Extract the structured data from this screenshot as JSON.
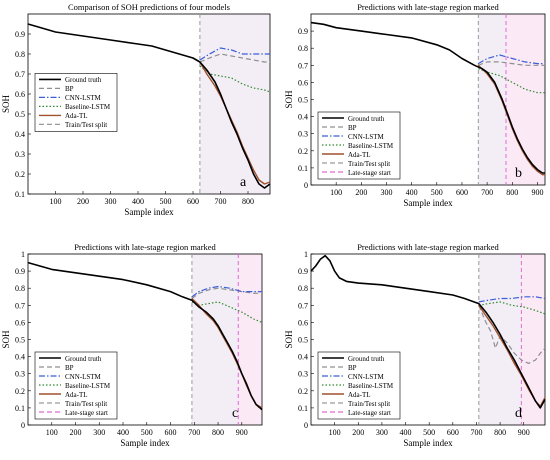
{
  "figure": {
    "colors": {
      "Ground truth": "#000000",
      "BP": "#8f8f8f",
      "CNN-LSTM": "#3b5fd6",
      "Baseline-LSTM": "#2e8b2e",
      "Ada-TL": "#a0522d",
      "Train/Test split": "#9a9a9a",
      "Late-stage start": "#e06ad2"
    }
  },
  "chart_data": [
    {
      "type": "line",
      "title": "Comparison of SOH predictions of four models",
      "xlabel": "Sample index",
      "ylabel": "SOH",
      "panel_label": "a",
      "xlim": [
        0,
        880
      ],
      "ylim": [
        0.1,
        1.0
      ],
      "xticks": [
        100,
        200,
        300,
        400,
        500,
        600,
        700,
        800
      ],
      "yticks": [
        0.1,
        0.2,
        0.3,
        0.4,
        0.5,
        0.6,
        0.7,
        0.8,
        0.9
      ],
      "legend": [
        "Ground truth",
        "BP",
        "CNN-LSTM",
        "Baseline-LSTM",
        "Ada-TL",
        "Train/Test split"
      ],
      "legend_position": "center-left",
      "split_x": 625,
      "series": [
        {
          "name": "Ground truth",
          "style": "solid",
          "x": [
            0,
            50,
            100,
            200,
            300,
            400,
            450,
            500,
            550,
            600,
            625,
            650,
            680,
            700,
            720,
            740,
            760,
            780,
            800,
            820,
            840,
            860,
            880
          ],
          "y": [
            0.95,
            0.93,
            0.91,
            0.89,
            0.87,
            0.85,
            0.84,
            0.82,
            0.8,
            0.78,
            0.76,
            0.72,
            0.66,
            0.6,
            0.53,
            0.46,
            0.4,
            0.33,
            0.27,
            0.2,
            0.15,
            0.13,
            0.15
          ]
        },
        {
          "name": "BP",
          "style": "dashed",
          "x": [
            625,
            660,
            700,
            740,
            780,
            820,
            860,
            880
          ],
          "y": [
            0.76,
            0.78,
            0.8,
            0.79,
            0.78,
            0.77,
            0.76,
            0.76
          ]
        },
        {
          "name": "CNN-LSTM",
          "style": "dashdot",
          "x": [
            625,
            660,
            700,
            740,
            780,
            820,
            860,
            880
          ],
          "y": [
            0.77,
            0.8,
            0.83,
            0.82,
            0.8,
            0.8,
            0.8,
            0.8
          ]
        },
        {
          "name": "Baseline-LSTM",
          "style": "dotted",
          "x": [
            625,
            660,
            700,
            740,
            780,
            820,
            860,
            880
          ],
          "y": [
            0.74,
            0.7,
            0.69,
            0.68,
            0.65,
            0.63,
            0.62,
            0.61
          ]
        },
        {
          "name": "Ada-TL",
          "style": "solid",
          "x": [
            625,
            650,
            680,
            700,
            720,
            740,
            760,
            780,
            800,
            820,
            840,
            860,
            880
          ],
          "y": [
            0.76,
            0.7,
            0.64,
            0.59,
            0.53,
            0.47,
            0.41,
            0.34,
            0.28,
            0.22,
            0.17,
            0.15,
            0.16
          ]
        }
      ]
    },
    {
      "type": "line",
      "title": "Predictions with late-stage region marked",
      "xlabel": "Sample index",
      "ylabel": "SOH",
      "panel_label": "b",
      "xlim": [
        0,
        930
      ],
      "ylim": [
        0,
        1.0
      ],
      "xticks": [
        100,
        200,
        300,
        400,
        500,
        600,
        700,
        800,
        900
      ],
      "yticks": [
        0,
        0.1,
        0.2,
        0.3,
        0.4,
        0.5,
        0.6,
        0.7,
        0.8,
        0.9
      ],
      "legend": [
        "Ground truth",
        "BP",
        "CNN-LSTM",
        "Baseline-LSTM",
        "Ada-TL",
        "Train/Test split",
        "Late-stage start"
      ],
      "legend_position": "lower-left",
      "split_x": 665,
      "late_x": 775,
      "series": [
        {
          "name": "Ground truth",
          "style": "solid",
          "x": [
            0,
            50,
            100,
            200,
            300,
            400,
            500,
            550,
            600,
            650,
            680,
            700,
            730,
            760,
            780,
            800,
            820,
            840,
            860,
            880,
            900,
            920,
            930
          ],
          "y": [
            0.95,
            0.94,
            0.92,
            0.9,
            0.88,
            0.86,
            0.82,
            0.79,
            0.74,
            0.7,
            0.68,
            0.66,
            0.6,
            0.5,
            0.42,
            0.34,
            0.27,
            0.21,
            0.16,
            0.12,
            0.09,
            0.07,
            0.07
          ]
        },
        {
          "name": "BP",
          "style": "dashed",
          "x": [
            665,
            700,
            750,
            800,
            850,
            900,
            930
          ],
          "y": [
            0.7,
            0.72,
            0.72,
            0.71,
            0.7,
            0.7,
            0.7
          ]
        },
        {
          "name": "CNN-LSTM",
          "style": "dashdot",
          "x": [
            665,
            700,
            750,
            800,
            850,
            900,
            930
          ],
          "y": [
            0.71,
            0.74,
            0.76,
            0.74,
            0.72,
            0.71,
            0.71
          ]
        },
        {
          "name": "Baseline-LSTM",
          "style": "dotted",
          "x": [
            665,
            700,
            750,
            800,
            850,
            900,
            930
          ],
          "y": [
            0.68,
            0.66,
            0.64,
            0.6,
            0.56,
            0.54,
            0.54
          ]
        },
        {
          "name": "Ada-TL",
          "style": "solid",
          "x": [
            665,
            700,
            730,
            760,
            780,
            800,
            820,
            840,
            860,
            880,
            900,
            920,
            930
          ],
          "y": [
            0.7,
            0.65,
            0.59,
            0.49,
            0.41,
            0.33,
            0.26,
            0.2,
            0.15,
            0.11,
            0.08,
            0.06,
            0.06
          ]
        }
      ]
    },
    {
      "type": "line",
      "title": "Predictions with late-stage region marked",
      "xlabel": "Sample index",
      "ylabel": "SOH",
      "panel_label": "c",
      "xlim": [
        0,
        985
      ],
      "ylim": [
        0,
        1.0
      ],
      "xticks": [
        100,
        200,
        300,
        400,
        500,
        600,
        700,
        800,
        900
      ],
      "yticks": [
        0,
        0.1,
        0.2,
        0.3,
        0.4,
        0.5,
        0.6,
        0.7,
        0.8,
        0.9,
        1
      ],
      "legend": [
        "Ground truth",
        "BP",
        "CNN-LSTM",
        "Baseline-LSTM",
        "Ada-TL",
        "Train/Test split",
        "Late-stage start"
      ],
      "legend_position": "lower-left",
      "split_x": 690,
      "late_x": 885,
      "series": [
        {
          "name": "Ground truth",
          "style": "solid",
          "x": [
            0,
            50,
            100,
            200,
            300,
            400,
            500,
            600,
            650,
            690,
            720,
            750,
            780,
            800,
            820,
            840,
            860,
            880,
            900,
            920,
            940,
            960,
            985
          ],
          "y": [
            0.95,
            0.93,
            0.91,
            0.89,
            0.87,
            0.85,
            0.82,
            0.78,
            0.75,
            0.73,
            0.69,
            0.66,
            0.62,
            0.58,
            0.53,
            0.48,
            0.43,
            0.37,
            0.3,
            0.24,
            0.17,
            0.12,
            0.09
          ]
        },
        {
          "name": "BP",
          "style": "dashed",
          "x": [
            690,
            720,
            760,
            800,
            850,
            900,
            950,
            985
          ],
          "y": [
            0.74,
            0.77,
            0.79,
            0.8,
            0.79,
            0.78,
            0.77,
            0.77
          ]
        },
        {
          "name": "CNN-LSTM",
          "style": "dashdot",
          "x": [
            690,
            720,
            760,
            800,
            850,
            900,
            950,
            985
          ],
          "y": [
            0.75,
            0.78,
            0.8,
            0.81,
            0.8,
            0.78,
            0.78,
            0.78
          ]
        },
        {
          "name": "Baseline-LSTM",
          "style": "dotted",
          "x": [
            690,
            720,
            760,
            800,
            850,
            900,
            950,
            985
          ],
          "y": [
            0.72,
            0.7,
            0.71,
            0.72,
            0.69,
            0.66,
            0.62,
            0.6
          ]
        },
        {
          "name": "Ada-TL",
          "style": "solid",
          "x": [
            690,
            720,
            750,
            780,
            800,
            820,
            840,
            860,
            880,
            900,
            920,
            940,
            960,
            985
          ],
          "y": [
            0.74,
            0.7,
            0.65,
            0.61,
            0.57,
            0.52,
            0.47,
            0.42,
            0.36,
            0.3,
            0.23,
            0.17,
            0.12,
            0.1
          ]
        }
      ]
    },
    {
      "type": "line",
      "title": "Predictions with late-stage region marked",
      "xlabel": "Sample index",
      "ylabel": "SOH",
      "panel_label": "d",
      "xlim": [
        0,
        990
      ],
      "ylim": [
        0,
        1.0
      ],
      "xticks": [
        100,
        200,
        300,
        400,
        500,
        600,
        700,
        800,
        900
      ],
      "yticks": [
        0,
        0.1,
        0.2,
        0.3,
        0.4,
        0.5,
        0.6,
        0.7,
        0.8,
        0.9,
        1
      ],
      "legend": [
        "Ground truth",
        "BP",
        "CNN-LSTM",
        "Baseline-LSTM",
        "Ada-TL",
        "Train/Test split",
        "Late-stage start"
      ],
      "legend_position": "lower-left",
      "split_x": 710,
      "late_x": 890,
      "series": [
        {
          "name": "Ground truth",
          "style": "solid",
          "x": [
            0,
            20,
            40,
            60,
            80,
            100,
            120,
            150,
            200,
            300,
            400,
            500,
            600,
            650,
            710,
            740,
            770,
            800,
            830,
            860,
            890,
            920,
            950,
            970,
            990
          ],
          "y": [
            0.9,
            0.93,
            0.97,
            0.99,
            0.96,
            0.9,
            0.86,
            0.84,
            0.83,
            0.82,
            0.8,
            0.78,
            0.76,
            0.74,
            0.71,
            0.66,
            0.6,
            0.53,
            0.45,
            0.38,
            0.3,
            0.22,
            0.14,
            0.1,
            0.15
          ]
        },
        {
          "name": "BP",
          "style": "dashed",
          "x": [
            710,
            740,
            760,
            780,
            800,
            830,
            860,
            890,
            920,
            950,
            970,
            990
          ],
          "y": [
            0.7,
            0.6,
            0.55,
            0.45,
            0.52,
            0.48,
            0.42,
            0.38,
            0.36,
            0.38,
            0.42,
            0.45
          ]
        },
        {
          "name": "CNN-LSTM",
          "style": "dashdot",
          "x": [
            710,
            750,
            800,
            850,
            900,
            950,
            990
          ],
          "y": [
            0.72,
            0.73,
            0.74,
            0.74,
            0.75,
            0.75,
            0.74
          ]
        },
        {
          "name": "Baseline-LSTM",
          "style": "dotted",
          "x": [
            710,
            750,
            800,
            850,
            900,
            950,
            990
          ],
          "y": [
            0.7,
            0.71,
            0.72,
            0.7,
            0.69,
            0.67,
            0.65
          ]
        },
        {
          "name": "Ada-TL",
          "style": "solid",
          "x": [
            710,
            740,
            770,
            800,
            830,
            860,
            890,
            920,
            950,
            970,
            990
          ],
          "y": [
            0.7,
            0.64,
            0.58,
            0.51,
            0.44,
            0.36,
            0.29,
            0.21,
            0.14,
            0.11,
            0.16
          ]
        }
      ]
    }
  ]
}
